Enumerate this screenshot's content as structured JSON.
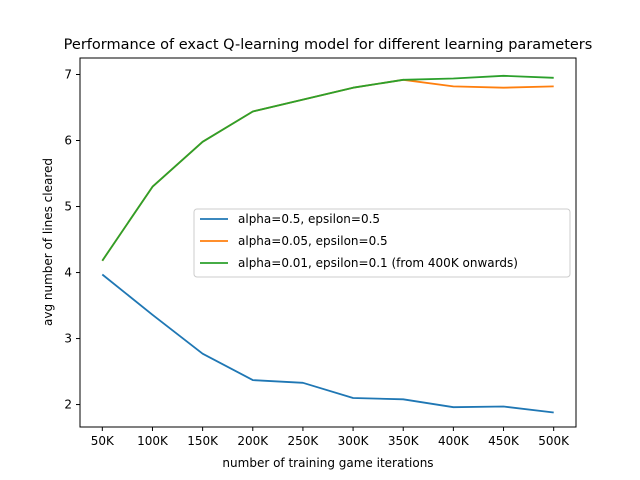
{
  "chart_data": {
    "type": "line",
    "title": "Performance of exact Q-learning model for different learning parameters",
    "xlabel": "number of training game iterations",
    "ylabel": "avg number of lines cleared",
    "categories": [
      "50K",
      "100K",
      "150K",
      "200K",
      "250K",
      "300K",
      "350K",
      "400K",
      "450K",
      "500K"
    ],
    "ylim": [
      1.66,
      7.25
    ],
    "yticks": [
      2,
      3,
      4,
      5,
      6,
      7
    ],
    "grid": false,
    "legend_position": "center-right",
    "series": [
      {
        "name": "alpha=0.5, epsilon=0.5",
        "color": "#1f77b4",
        "values": [
          3.97,
          3.36,
          2.77,
          2.37,
          2.33,
          2.1,
          2.08,
          1.96,
          1.97,
          1.88
        ]
      },
      {
        "name": "alpha=0.05, epsilon=0.5",
        "color": "#ff7f0e",
        "values": [
          4.18,
          5.3,
          5.98,
          6.44,
          6.62,
          6.8,
          6.92,
          6.82,
          6.8,
          6.82
        ]
      },
      {
        "name": "alpha=0.01, epsilon=0.1 (from 400K onwards)",
        "color": "#2ca02c",
        "values": [
          4.18,
          5.3,
          5.98,
          6.44,
          6.62,
          6.8,
          6.92,
          6.94,
          6.98,
          6.95
        ]
      }
    ]
  }
}
